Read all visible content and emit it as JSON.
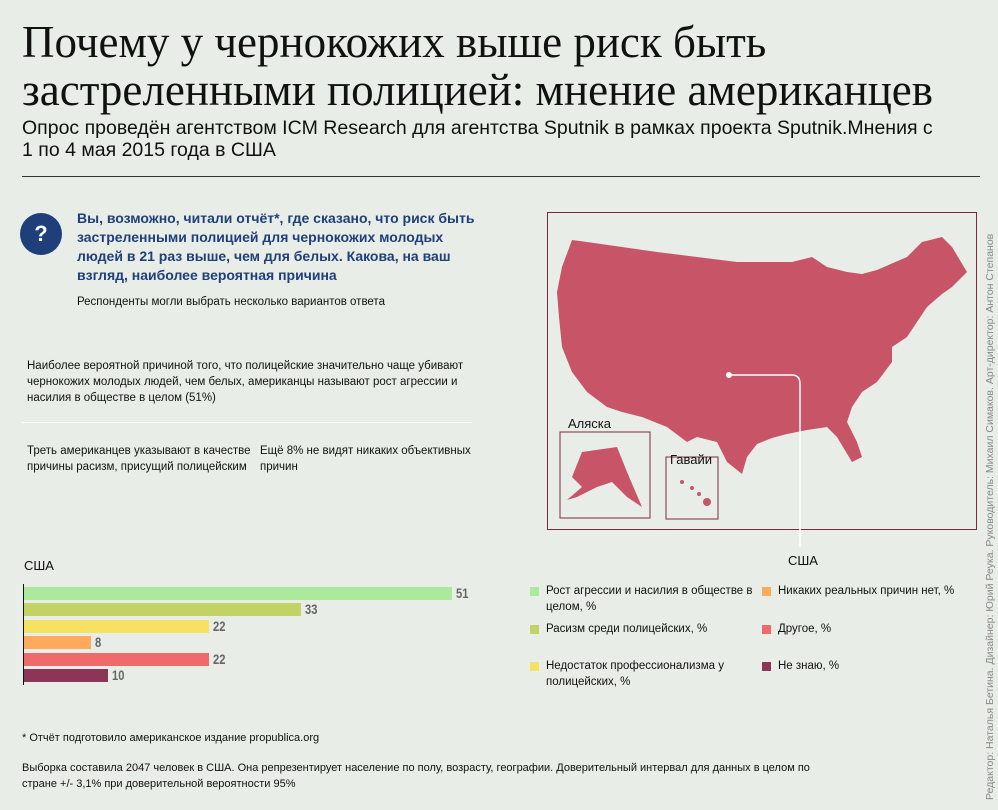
{
  "title": "Почему у чернокожих выше риск быть застреленными полицией: мнение американцев",
  "subtitle": "Опрос проведён агентством ICM Research для агентства Sputnik в рамках проекта Sputnik.Мнения с 1 по 4 мая 2015 года в США",
  "question": {
    "icon": "?",
    "text": "Вы, возможно, читали отчёт*, где сказано, что риск быть застреленными полицией для чернокожих молодых людей в 21 раз выше, чем для белых. Какова, на ваш взгляд, наиболее вероятная причина",
    "note": "Респонденты могли выбрать несколько вариантов ответа"
  },
  "findings": {
    "main": "Наиболее вероятной причиной того, что полицейские значительно чаще убивают чернокожих молодых людей, чем белых, американцы называют рост агрессии и насилия в обществе в целом (51%)",
    "left": "Треть американцев указывают в качестве причины расизм, присущий полицейским",
    "right": "Ещё 8% не видят никаких объективных причин"
  },
  "map": {
    "alaska": "Аляска",
    "hawaii": "Гавайи",
    "country": "США",
    "fill": "#c85468"
  },
  "chart_data": {
    "type": "bar",
    "title": "США",
    "orientation": "horizontal",
    "xlim": [
      0,
      51
    ],
    "categories": [
      "Рост агрессии и насилия в обществе в целом, %",
      "Расизм среди полицейских, %",
      "Недостаток профессионализма у полицейских, %",
      "Никаких реальных причин нет, %",
      "Другое, %",
      "Не знаю, %"
    ],
    "values": [
      51,
      33,
      22,
      8,
      22,
      10
    ],
    "colors": [
      "#ace99c",
      "#c2d264",
      "#f5e262",
      "#fdaa5b",
      "#ef6a6b",
      "#8c3559"
    ]
  },
  "footnote": "* Отчёт подготовило американское издание propublica.org",
  "methodology": "Выборка составила 2047 человек в США. Она репрезентирует население по полу, возрасту, географии. Доверительный интервал для данных в целом по стране +/- 3,1% при доверительной вероятности 95%",
  "credits": "Редактор: Наталья Бетина. Дизайнер: Юрий Реука. Руководитель: Михаил Симаков. Арт-директор: Антон Степанов"
}
